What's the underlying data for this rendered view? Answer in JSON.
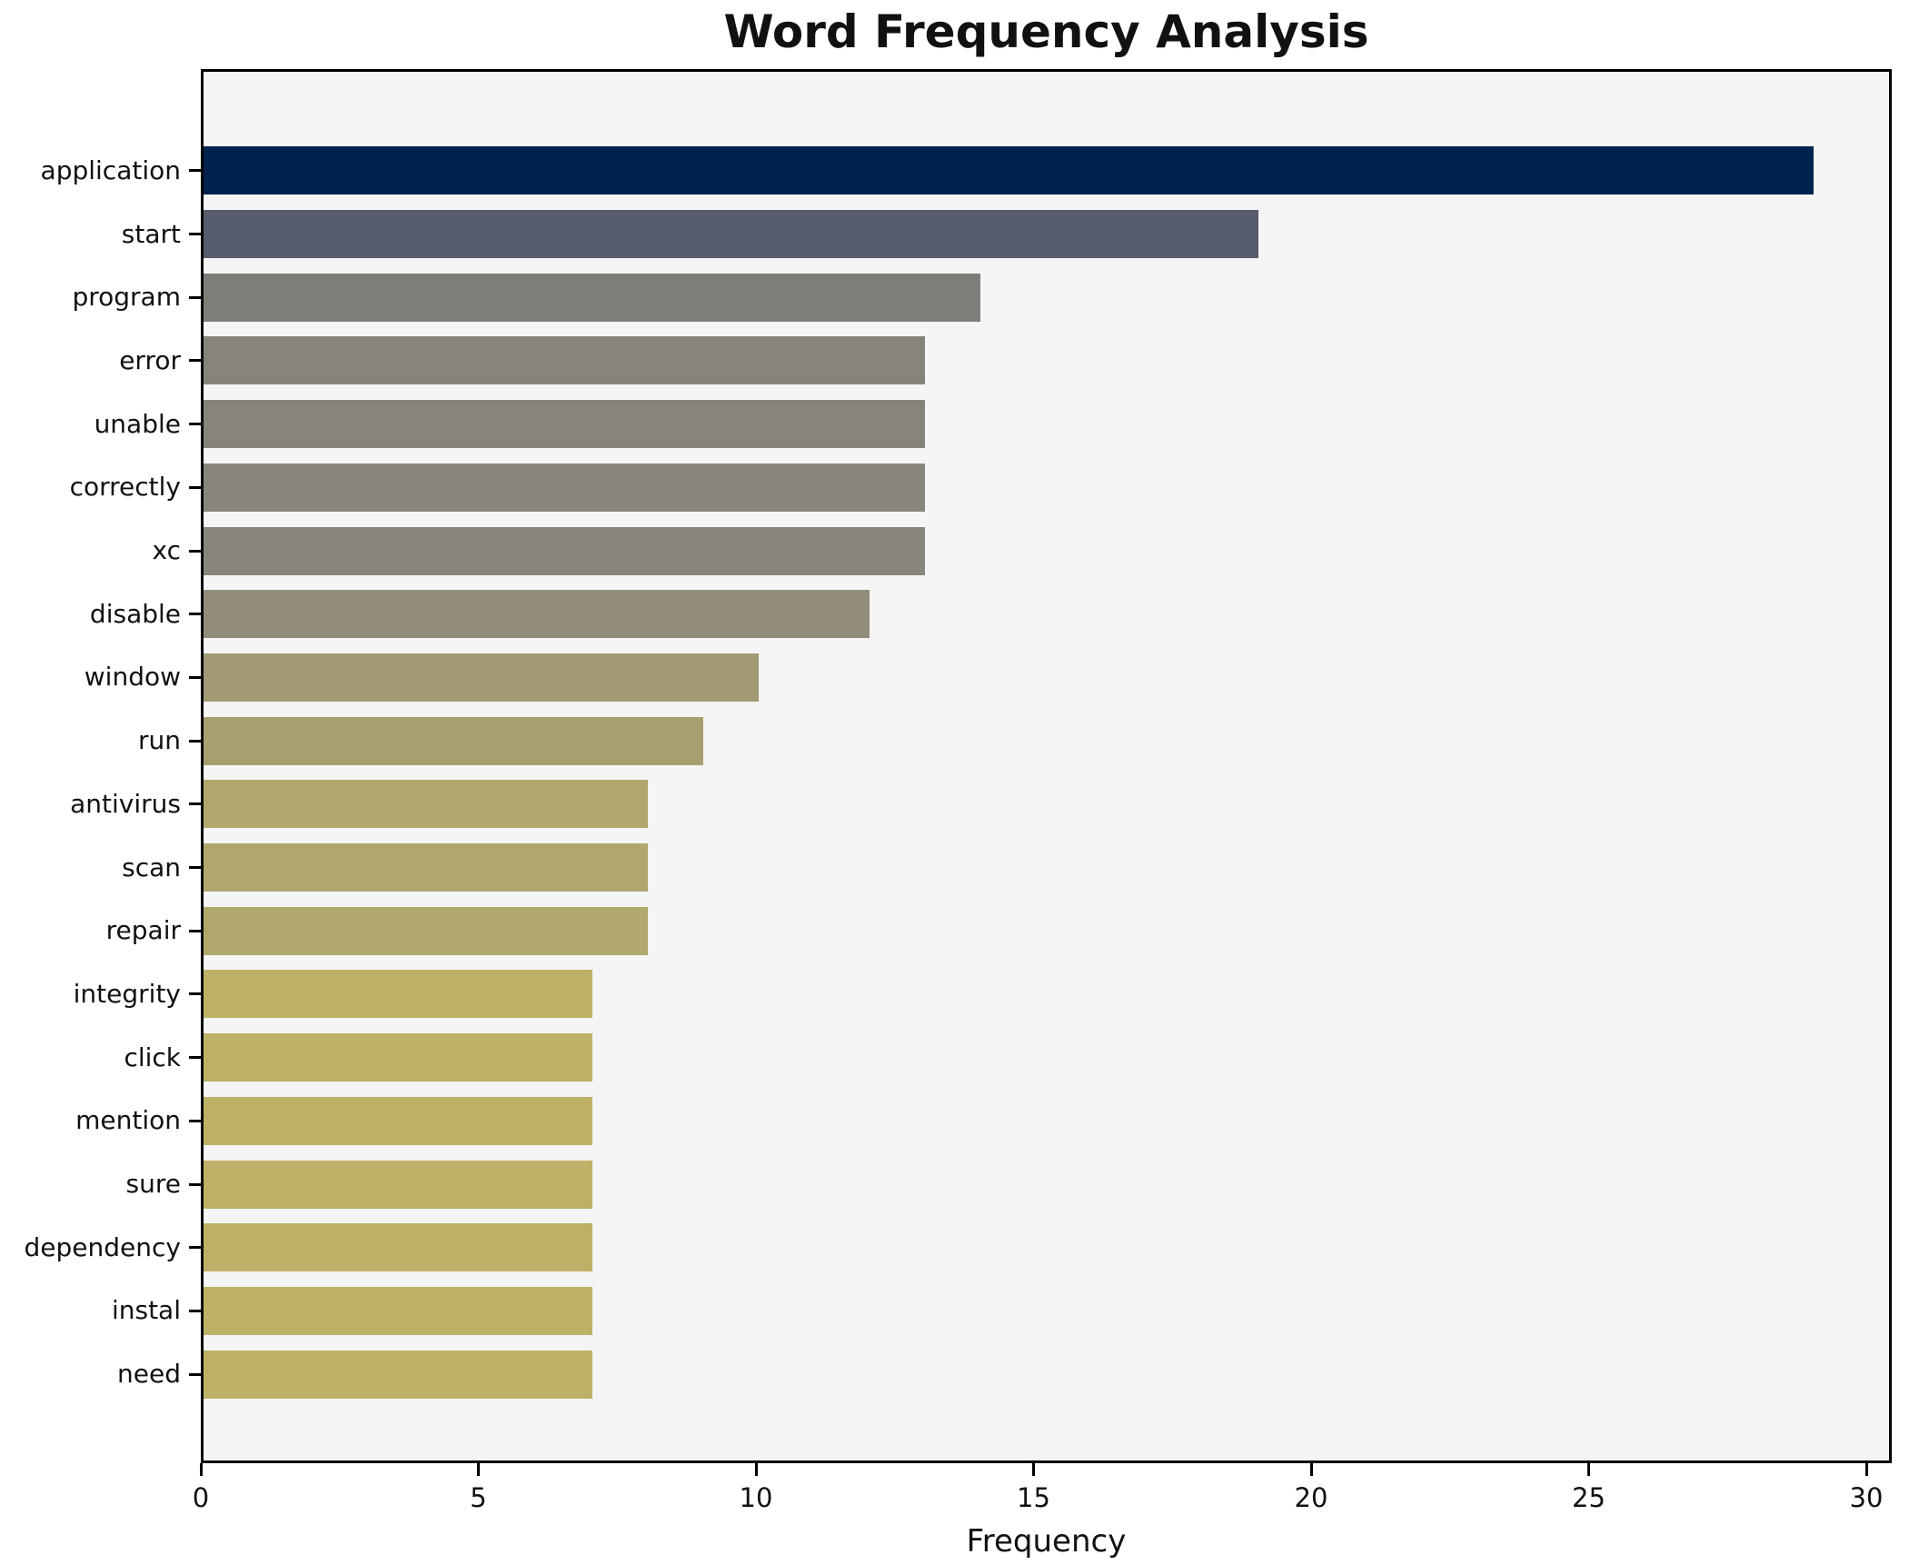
{
  "title": "Word Frequency Analysis",
  "chart_data": {
    "type": "bar",
    "orientation": "horizontal",
    "title": "Word Frequency Analysis",
    "xlabel": "Frequency",
    "ylabel": "",
    "xlim": [
      0,
      30
    ],
    "x_ticks": [
      0,
      5,
      10,
      15,
      20,
      25,
      30
    ],
    "grid": false,
    "legend": "none",
    "plot_background": "#f5f5f5",
    "figure_background": "#ffffff",
    "spine_color": "#000000",
    "categories": [
      "application",
      "start",
      "program",
      "error",
      "unable",
      "correctly",
      "xc",
      "disable",
      "window",
      "run",
      "antivirus",
      "scan",
      "repair",
      "integrity",
      "click",
      "mention",
      "sure",
      "dependency",
      "instal",
      "need"
    ],
    "values": [
      29,
      19,
      14,
      13,
      13,
      13,
      13,
      12,
      10,
      9,
      8,
      8,
      8,
      7,
      7,
      7,
      7,
      7,
      7,
      7
    ],
    "bar_colors": [
      "#00224e",
      "#575d6d",
      "#7d7e77",
      "#87857b",
      "#87857b",
      "#88867b",
      "#88867b",
      "#918d7a",
      "#a29a74",
      "#a89f6f",
      "#b0a76d",
      "#b0a76d",
      "#b1a86c",
      "#bcb167",
      "#bcb167",
      "#bdb167",
      "#bdb167",
      "#bdb167",
      "#bdb167",
      "#bdb167"
    ]
  },
  "layout_hints": {
    "note": "horizontal bar chart, darkest bar = highest frequency, khaki bars = lowest"
  }
}
